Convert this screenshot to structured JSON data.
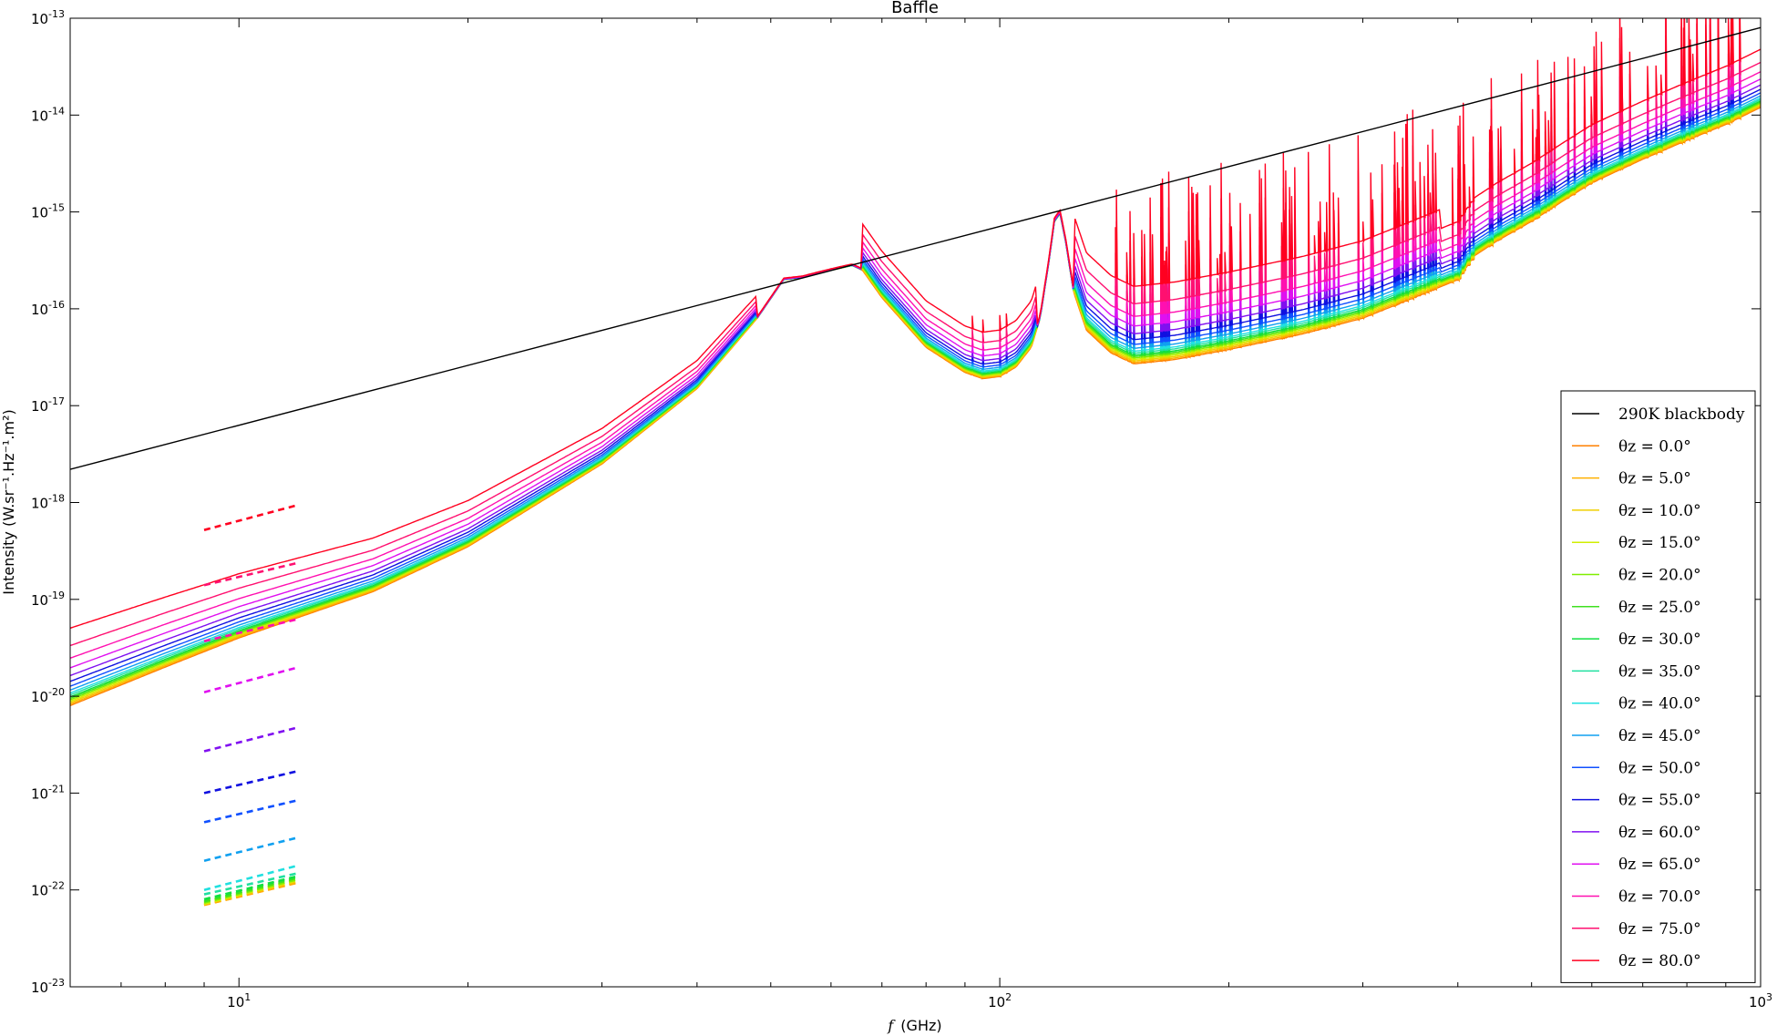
{
  "chart_data": {
    "type": "line",
    "title": "Baffle",
    "xlabel_symbol": "f",
    "xlabel_unit": "(GHz)",
    "ylabel": "Intensity (W.sr⁻¹.Hz⁻¹.m²)",
    "x_scale": "log",
    "y_scale": "log",
    "xlim": [
      6,
      1000
    ],
    "ylim": [
      1e-23,
      1e-13
    ],
    "x_ticks": [
      {
        "base": "10",
        "exp": "1",
        "value": 10
      },
      {
        "base": "10",
        "exp": "2",
        "value": 100
      },
      {
        "base": "10",
        "exp": "3",
        "value": 1000
      }
    ],
    "y_ticks": [
      {
        "base": "10",
        "exp": "-13",
        "value": -13
      },
      {
        "base": "10",
        "exp": "-14",
        "value": -14
      },
      {
        "base": "10",
        "exp": "-15",
        "value": -15
      },
      {
        "base": "10",
        "exp": "-16",
        "value": -16
      },
      {
        "base": "10",
        "exp": "-17",
        "value": -17
      },
      {
        "base": "10",
        "exp": "-18",
        "value": -18
      },
      {
        "base": "10",
        "exp": "-19",
        "value": -19
      },
      {
        "base": "10",
        "exp": "-20",
        "value": -20
      },
      {
        "base": "10",
        "exp": "-21",
        "value": -21
      },
      {
        "base": "10",
        "exp": "-22",
        "value": -22
      },
      {
        "base": "10",
        "exp": "-23",
        "value": -23
      }
    ],
    "grid": false,
    "legend_position": "lower-right",
    "blackbody": {
      "name": "290K blackbody",
      "color": "#000000",
      "x": [
        6,
        1000
      ],
      "y": [
        2.2e-18,
        8e-14
      ]
    },
    "series": [
      {
        "name": "θz = 0.0°",
        "color": "#ff8000",
        "offset": 0.0,
        "dash_y": [
          7e-23,
          1.2e-22
        ]
      },
      {
        "name": "θz = 5.0°",
        "color": "#ffb000",
        "offset": 0.015,
        "dash_y": [
          7e-23,
          1.2e-22
        ]
      },
      {
        "name": "θz = 10.0°",
        "color": "#f0d000",
        "offset": 0.03,
        "dash_y": [
          7.2e-23,
          1.25e-22
        ]
      },
      {
        "name": "θz = 15.0°",
        "color": "#d0ee00",
        "offset": 0.045,
        "dash_y": [
          7.2e-23,
          1.28e-22
        ]
      },
      {
        "name": "θz = 20.0°",
        "color": "#80ee00",
        "offset": 0.06,
        "dash_y": [
          7.4e-23,
          1.3e-22
        ]
      },
      {
        "name": "θz = 25.0°",
        "color": "#40e020",
        "offset": 0.075,
        "dash_y": [
          7.6e-23,
          1.35e-22
        ]
      },
      {
        "name": "θz = 30.0°",
        "color": "#10e040",
        "offset": 0.09,
        "dash_y": [
          8e-23,
          1.4e-22
        ]
      },
      {
        "name": "θz = 35.0°",
        "color": "#20e0a0",
        "offset": 0.11,
        "dash_y": [
          9e-23,
          1.5e-22
        ]
      },
      {
        "name": "θz = 40.0°",
        "color": "#20e0e0",
        "offset": 0.13,
        "dash_y": [
          1e-22,
          1.8e-22
        ]
      },
      {
        "name": "θz = 45.0°",
        "color": "#10a0f0",
        "offset": 0.16,
        "dash_y": [
          2e-22,
          3.5e-22
        ]
      },
      {
        "name": "θz = 50.0°",
        "color": "#1050ff",
        "offset": 0.2,
        "dash_y": [
          5e-22,
          8.5e-22
        ]
      },
      {
        "name": "θz = 55.0°",
        "color": "#1010e0",
        "offset": 0.25,
        "dash_y": [
          1e-21,
          1.7e-21
        ]
      },
      {
        "name": "θz = 60.0°",
        "color": "#8010f0",
        "offset": 0.31,
        "dash_y": [
          2.7e-21,
          4.8e-21
        ]
      },
      {
        "name": "θz = 65.0°",
        "color": "#e010f0",
        "offset": 0.39,
        "dash_y": [
          1.1e-20,
          2e-20
        ]
      },
      {
        "name": "θz = 70.0°",
        "color": "#ff10b0",
        "offset": 0.49,
        "dash_y": [
          3.7e-20,
          6.3e-20
        ]
      },
      {
        "name": "θz = 75.0°",
        "color": "#ff1070",
        "offset": 0.62,
        "dash_y": [
          1.4e-19,
          2.4e-19
        ]
      },
      {
        "name": "θz = 80.0°",
        "color": "#ff0020",
        "offset": 0.8,
        "dash_y": [
          5.2e-19,
          9.5e-19
        ]
      }
    ],
    "base_curve": {
      "x": [
        6,
        8,
        10,
        15,
        20,
        30,
        40,
        48,
        52,
        55,
        60,
        64,
        66,
        70,
        80,
        90,
        95,
        100,
        105,
        110,
        113,
        116,
        118,
        120,
        122,
        125,
        130,
        140,
        150,
        170,
        200,
        250,
        300,
        350,
        400,
        420,
        450,
        500,
        550,
        600,
        700,
        800,
        900,
        1000
      ],
      "y": [
        8e-21,
        2e-20,
        4e-20,
        1.2e-19,
        3.5e-19,
        2.5e-18,
        1.5e-17,
        8e-17,
        2e-16,
        2.1e-16,
        2.5e-16,
        2.8e-16,
        2.5e-16,
        1.3e-16,
        4e-17,
        2.2e-17,
        1.9e-17,
        2e-17,
        2.5e-17,
        4e-17,
        8e-17,
        3e-16,
        8e-16,
        9.5e-16,
        5e-16,
        1.5e-16,
        6e-17,
        3.5e-17,
        2.7e-17,
        3e-17,
        3.8e-17,
        5.5e-17,
        8e-17,
        1.3e-16,
        2e-16,
        3.5e-16,
        5e-16,
        8e-16,
        1.3e-15,
        2e-15,
        3.5e-15,
        5.5e-15,
        8e-15,
        1.2e-14
      ]
    }
  }
}
